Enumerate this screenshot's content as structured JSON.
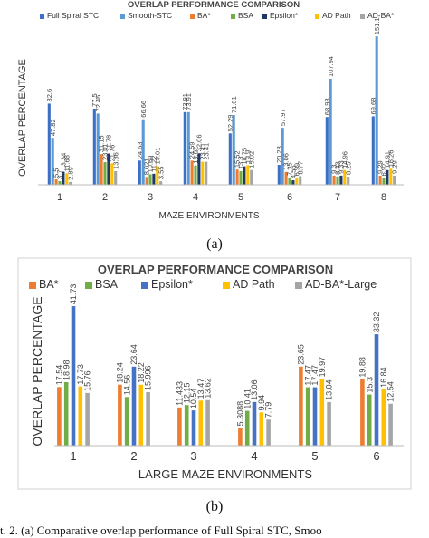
{
  "charts": [
    {
      "panel_label": "(a)",
      "chart_data": {
        "type": "bar",
        "title": "OVERLAP PERFORMANCE COMPARISON",
        "xlabel": "MAZE ENVIRONMENTS",
        "ylabel": "OVERLAP PERCENTAGE",
        "ylim": [
          0,
          160
        ],
        "grid": false,
        "legend": "top",
        "categories": [
          "1",
          "2",
          "3",
          "4",
          "5",
          "6",
          "7",
          "8"
        ],
        "series": [
          {
            "name": "Full Spiral STC",
            "color": "#3d6fc4",
            "values": [
              82.6,
              77.5,
              24.63,
              73.91,
              52.29,
              20.28,
              68.98,
              69.68
            ],
            "labels": [
              "82.6",
              "77.5",
              "24.63",
              "73.91",
              "52.29",
              "20.28",
              "68.98",
              "69.68"
            ]
          },
          {
            "name": "Smooth-STC",
            "color": "#5b9bd5",
            "values": [
              47.82,
              72.46,
              66.66,
              73.91,
              71.01,
              57.97,
              107.94,
              151.1
            ],
            "labels": [
              "47.82",
              "72.46",
              "66.66",
              "73.91",
              "71.01",
              "57.97",
              "107.94",
              "151.1"
            ]
          },
          {
            "name": "BA*",
            "color": "#ed7d31",
            "values": [
              5.5,
              31.15,
              8.021,
              24.59,
              15.52,
              13.06,
              9.3,
              9.29
            ],
            "labels": [
              "5.5",
              "31.15",
              "8.021",
              "24.59",
              "15.52",
              "13.06",
              "9.3",
              "9.29"
            ]
          },
          {
            "name": "BSA",
            "color": "#70ad47",
            "values": [
              3.7,
              23.01,
              10.69,
              19.67,
              13.8,
              7.35,
              8.43,
              6.97
            ],
            "labels": [
              "3.7",
              "23.01",
              "10.69",
              "19.67",
              "13.8",
              "7.35",
              "8.43",
              "6.97"
            ]
          },
          {
            "name": "Epsilon*",
            "color": "#1f3864",
            "values": [
              13.34,
              31.78,
              11.22,
              32.06,
              18.75,
              4.56,
              9.33,
              14.91
            ],
            "labels": [
              "13.34",
              "31.78",
              "11.22",
              "32.06",
              "18.75",
              "4.56",
              "9.33",
              "14.91"
            ]
          },
          {
            "name": "AD Path",
            "color": "#ffc000",
            "values": [
              11.68,
              21.76,
              19.01,
              23.41,
              19.9,
              6.99,
              14.96,
              16.26
            ],
            "labels": [
              "11.68",
              "21.76",
              "19.01",
              "23.41",
              "19.9",
              "6.99",
              "14.96",
              "16.26"
            ]
          },
          {
            "name": "AD-BA*",
            "color": "#a5a5a5",
            "values": [
              2.89,
              13.86,
              3.55,
              23.41,
              15.02,
              8.77,
              8.25,
              9.29
            ],
            "labels": [
              "2.89",
              "13.86",
              "3.55",
              "23.41",
              "15.02",
              "8.77",
              "8.25",
              "9.29"
            ]
          }
        ]
      }
    },
    {
      "panel_label": "(b)",
      "chart_data": {
        "type": "bar",
        "title": "OVERLAP PERFORMANCE COMPARISON",
        "xlabel": "LARGE MAZE ENVIRONMENTS",
        "ylabel": "OVERLAP PERCENTAGE",
        "ylim": [
          0,
          45
        ],
        "grid": false,
        "legend": "top",
        "categories": [
          "1",
          "2",
          "3",
          "4",
          "5",
          "6"
        ],
        "series": [
          {
            "name": "BA*",
            "color": "#ed7d31",
            "values": [
              17.54,
              18.24,
              11.433,
              5.3088,
              23.65,
              19.88
            ],
            "labels": [
              "17.54",
              "18.24",
              "11.433",
              "5.3088",
              "23.65",
              "19.88"
            ]
          },
          {
            "name": "BSA",
            "color": "#70ad47",
            "values": [
              18.98,
              14.56,
              12.15,
              10.41,
              17.47,
              15.3
            ],
            "labels": [
              "18.98",
              "14.56",
              "12.15",
              "10.41",
              "17.47",
              "15.3"
            ]
          },
          {
            "name": "Epsilon*",
            "color": "#4472c4",
            "values": [
              41.73,
              23.64,
              10.54,
              13.06,
              17.47,
              33.32
            ],
            "labels": [
              "41.73",
              "23.64",
              "10.54",
              "13.06",
              "17.47",
              "33.32"
            ]
          },
          {
            "name": "AD Path",
            "color": "#ffc000",
            "values": [
              17.73,
              18.22,
              13.47,
              9.94,
              19.97,
              16.84
            ],
            "labels": [
              "17.73",
              "18.22",
              "13.47",
              "9.94",
              "19.97",
              "16.84"
            ]
          },
          {
            "name": "AD-BA*-Large",
            "color": "#a5a5a5",
            "values": [
              15.76,
              15.996,
              13.62,
              7.79,
              13.04,
              12.54
            ],
            "labels": [
              "15.76",
              "15.996",
              "13.62",
              "7.79",
              "13.04",
              "12.54"
            ]
          }
        ]
      }
    }
  ],
  "caption": "t. 2.   (a) Comparative overlap performance of Full Spiral STC, Smoo"
}
